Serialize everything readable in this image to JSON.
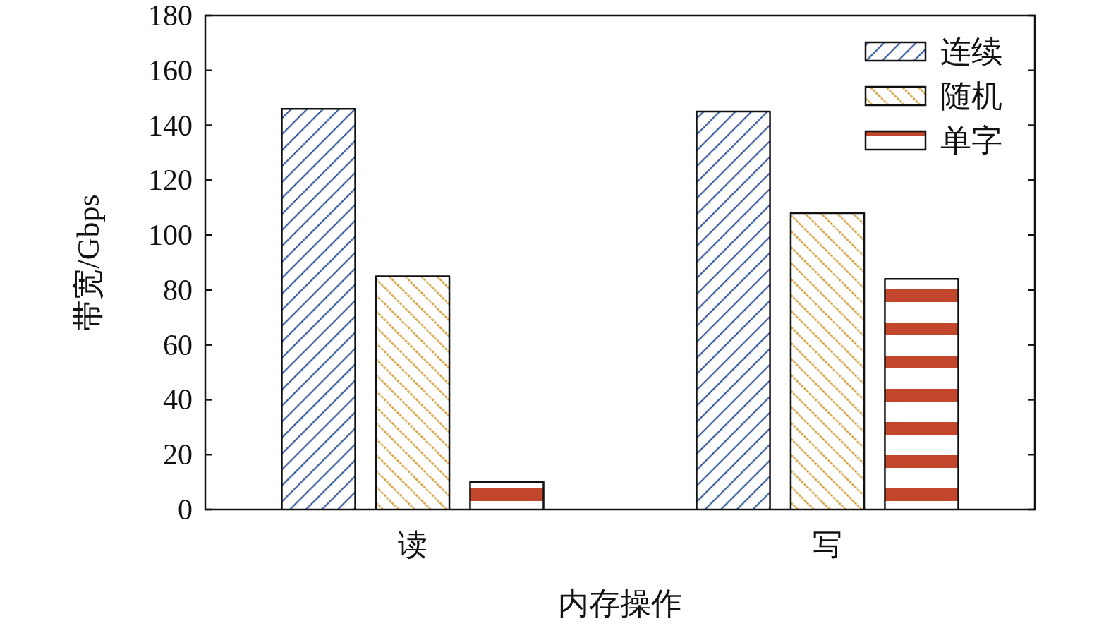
{
  "chart_data": {
    "type": "bar",
    "xlabel": "内存操作",
    "ylabel": "带宽/Gbps",
    "categories": [
      "读",
      "写"
    ],
    "series": [
      {
        "name": "连续",
        "color": "#3b5f9c",
        "values": [
          146,
          145
        ]
      },
      {
        "name": "随机",
        "color": "#d4a03c",
        "values": [
          85,
          108
        ]
      },
      {
        "name": "单字",
        "color": "#c1462b",
        "values": [
          10,
          84
        ]
      }
    ],
    "ylim": [
      0,
      180
    ],
    "yticks": [
      0,
      20,
      40,
      60,
      80,
      100,
      120,
      140,
      160,
      180
    ],
    "grid": false,
    "legend": "top right"
  }
}
